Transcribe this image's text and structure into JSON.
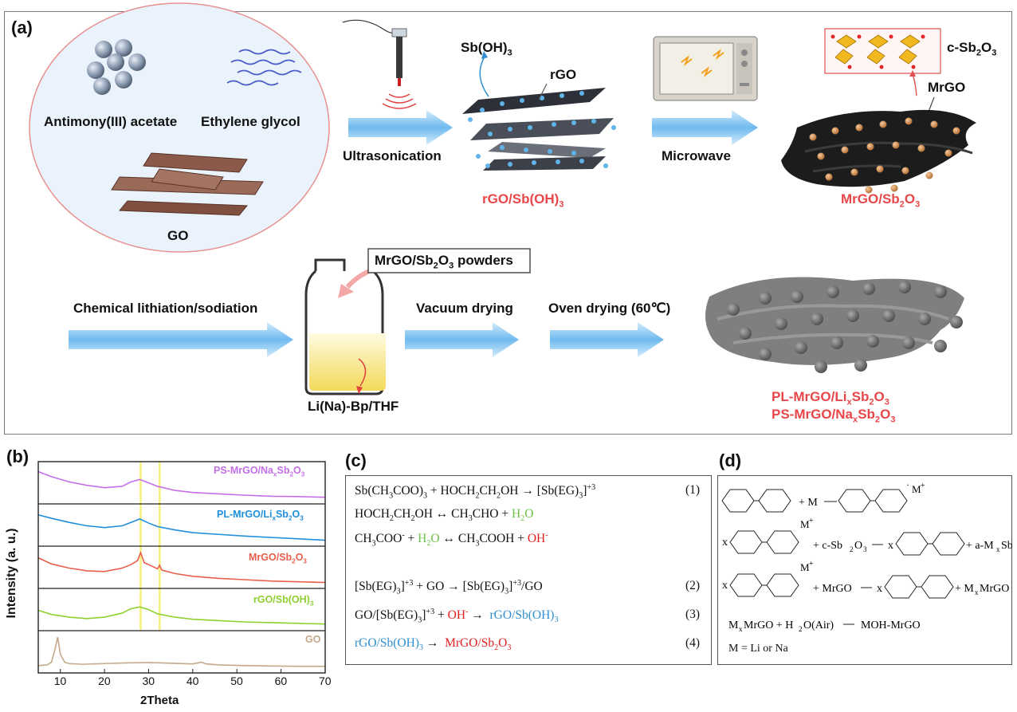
{
  "panel_a": {
    "letter": "(a)",
    "reagents": {
      "antimony": "Antimony(III) acetate",
      "glycol": "Ethylene glycol",
      "go": "GO"
    },
    "steps": {
      "ultrasonication": "Ultrasonication",
      "microwave": "Microwave",
      "lithiation": "Chemical lithiation/sodiation",
      "vacuum": "Vacuum drying",
      "oven": "Oven drying (60℃)"
    },
    "labels": {
      "sboh3": "Sb(OH)",
      "sboh3_sub": "3",
      "rgo": "rGO",
      "csb": "c-Sb",
      "csb_sub1": "2",
      "csb_o": "O",
      "csb_sub2": "3",
      "mrgo": "MrGO",
      "solvent": "Li(Na)-Bp/THF",
      "powders": "MrGO/Sb",
      "powders_sub1": "2",
      "powders_o": "O",
      "powders_sub2": "3",
      "powders_tail": " powders"
    },
    "products": {
      "rgo_sboh3": "rGO/Sb(OH)",
      "rgo_sboh3_sub": "3",
      "mrgo_sb2o3": "MrGO/Sb",
      "mrgo_sb2o3_sub1": "2",
      "mrgo_sb2o3_o": "O",
      "mrgo_sb2o3_sub2": "3",
      "pl": "PL-MrGO/Li",
      "pl_x": "x",
      "pl_sb": "Sb",
      "pl_2": "2",
      "pl_o": "O",
      "pl_3": "3",
      "ps": "PS-MrGO/Na",
      "ps_x": "x",
      "ps_sb": "Sb",
      "ps_2": "2",
      "ps_o": "O",
      "ps_3": "3"
    }
  },
  "panel_b": {
    "letter": "(b)",
    "chart_data": {
      "type": "line",
      "xlabel": "2Theta",
      "ylabel": "Intensity (a. u.)",
      "xlim": [
        5,
        70
      ],
      "xticks": [
        10,
        20,
        30,
        40,
        50,
        60,
        70
      ],
      "reference_lines_x": [
        28.2,
        32.5
      ],
      "series": [
        {
          "name": "PS-MrGO/NaxSb2O3",
          "color": "#c46ee8",
          "x": [
            5,
            8,
            12,
            16,
            20,
            24,
            26,
            28,
            30,
            32,
            36,
            40,
            46,
            52,
            58,
            64,
            70
          ],
          "y": [
            0.85,
            0.7,
            0.55,
            0.45,
            0.38,
            0.42,
            0.55,
            0.62,
            0.52,
            0.42,
            0.3,
            0.24,
            0.2,
            0.16,
            0.13,
            0.12,
            0.1
          ]
        },
        {
          "name": "PL-MrGO/LixSb2O3",
          "color": "#1f8fdc",
          "x": [
            5,
            8,
            12,
            16,
            20,
            24,
            26,
            28,
            30,
            32,
            36,
            40,
            46,
            52,
            58,
            64,
            70
          ],
          "y": [
            0.82,
            0.72,
            0.6,
            0.5,
            0.45,
            0.5,
            0.6,
            0.7,
            0.58,
            0.48,
            0.38,
            0.3,
            0.25,
            0.2,
            0.16,
            0.12,
            0.08
          ]
        },
        {
          "name": "MrGO/Sb2O3",
          "color": "#e8604c",
          "x": [
            5,
            8,
            12,
            16,
            20,
            24,
            26,
            27.5,
            28.2,
            29,
            30,
            32,
            32.5,
            33,
            36,
            40,
            46,
            52,
            58,
            64,
            70
          ],
          "y": [
            0.8,
            0.62,
            0.5,
            0.42,
            0.4,
            0.5,
            0.6,
            0.72,
            0.95,
            0.66,
            0.6,
            0.48,
            0.58,
            0.44,
            0.34,
            0.26,
            0.2,
            0.16,
            0.12,
            0.1,
            0.08
          ]
        },
        {
          "name": "rGO/Sb(OH)3",
          "color": "#8fd030",
          "x": [
            5,
            8,
            12,
            16,
            20,
            24,
            26,
            28,
            30,
            32,
            36,
            40,
            46,
            52,
            58,
            64,
            70
          ],
          "y": [
            0.5,
            0.38,
            0.3,
            0.26,
            0.3,
            0.42,
            0.55,
            0.6,
            0.52,
            0.4,
            0.3,
            0.24,
            0.2,
            0.16,
            0.14,
            0.12,
            0.1
          ]
        },
        {
          "name": "GO",
          "color": "#c4a98a",
          "x": [
            5,
            7,
            8,
            8.8,
            9.4,
            10,
            11,
            12,
            15,
            20,
            25,
            30,
            35,
            40,
            42,
            43,
            46,
            52,
            58,
            64,
            70
          ],
          "y": [
            0.12,
            0.14,
            0.22,
            0.6,
            0.95,
            0.45,
            0.22,
            0.18,
            0.16,
            0.18,
            0.2,
            0.21,
            0.19,
            0.17,
            0.22,
            0.17,
            0.14,
            0.12,
            0.11,
            0.1,
            0.1
          ]
        }
      ],
      "legend_labels": [
        {
          "main": "PS-MrGO/Na",
          "sub": "x",
          "main2": "Sb",
          "sub2": "2",
          "main3": "O",
          "sub3": "3"
        },
        {
          "main": "PL-MrGO/Li",
          "sub": "x",
          "main2": "Sb",
          "sub2": "2",
          "main3": "O",
          "sub3": "3"
        },
        {
          "main": "MrGO/Sb",
          "sub": "",
          "main2": "",
          "sub2": "2",
          "main3": "O",
          "sub3": "3"
        },
        {
          "main": "rGO/Sb(OH)",
          "sub": "",
          "main2": "",
          "sub2": "",
          "main3": "",
          "sub3": "3"
        },
        {
          "main": "GO",
          "sub": "",
          "main2": "",
          "sub2": "",
          "main3": "",
          "sub3": ""
        }
      ]
    }
  },
  "panel_c": {
    "letter": "(c)",
    "numbers": [
      "(1)",
      "(2)",
      "(3)",
      "(4)"
    ]
  },
  "panel_d": {
    "letter": "(d)",
    "m_def": "M = Li or Na"
  },
  "colors": {
    "arrow": "#7fc4f0",
    "accent_red": "#e8474a"
  }
}
